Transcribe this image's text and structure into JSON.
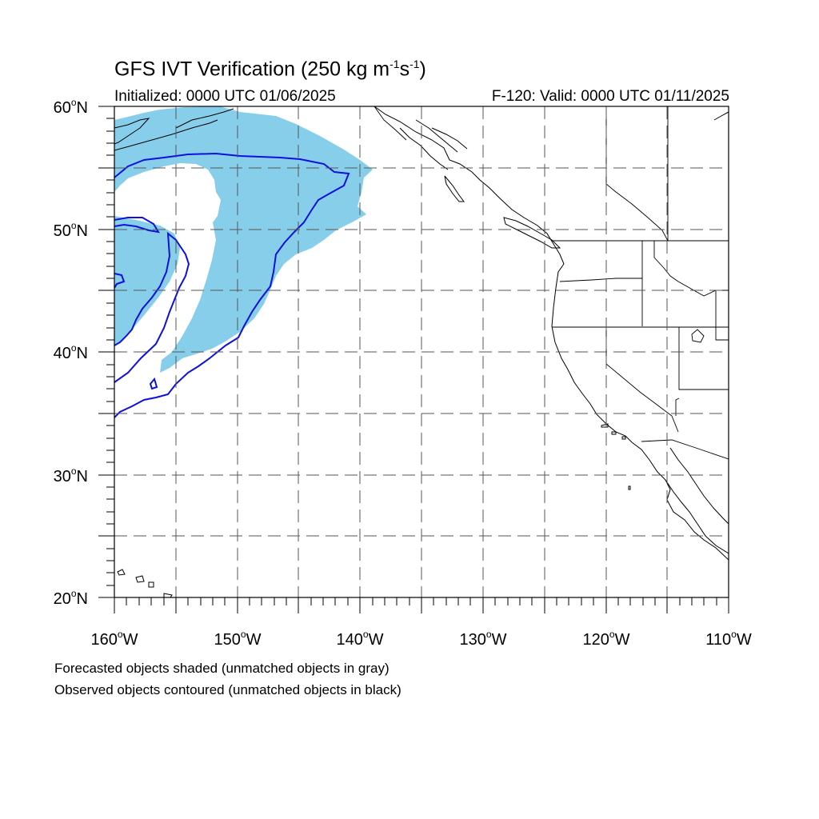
{
  "title": {
    "main": "GFS IVT Verification (250 kg m",
    "exp1": "-1",
    "mid": "s",
    "exp2": "-1",
    "close": ")"
  },
  "initialized": "Initialized: 0000 UTC 01/06/2025",
  "valid": "F-120: Valid: 0000 UTC 01/11/2025",
  "lat_labels": [
    "60",
    "50",
    "40",
    "30",
    "20"
  ],
  "lat_suffix": "N",
  "lon_labels": [
    "160",
    "150",
    "140",
    "130",
    "120",
    "110"
  ],
  "lon_suffix": "W",
  "degree_symbol": "o",
  "notes": [
    "Forecasted objects shaded (unmatched objects in gray)",
    "Observed objects contoured (unmatched objects in black)"
  ],
  "map": {
    "lon_range": [
      -160,
      -110
    ],
    "lat_range": [
      20,
      60
    ],
    "grid_spacing_deg": 5,
    "grid_style": "dashed",
    "forecast_fill_color": "#87CEEB",
    "observed_contour_color": "#1010DD",
    "coastline_color": "#000000"
  }
}
